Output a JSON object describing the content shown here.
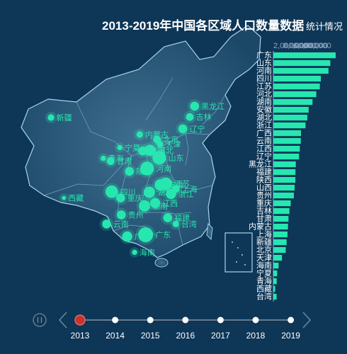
{
  "title": "2013-2019年中国各区域人口数量数据",
  "title_overlap": "统计情况",
  "colors": {
    "background": "#0d3657",
    "accent": "#28e6b0",
    "axis": "#8ea9c0",
    "timeline_active": "#c23531",
    "timeline_line": "#6a7c8c"
  },
  "timeline": {
    "years": [
      "2013",
      "2014",
      "2015",
      "2016",
      "2017",
      "2018",
      "2019"
    ],
    "current_index": 0,
    "play_icon": "pause-icon",
    "prev_icon": "chevron-left-icon",
    "next_icon": "chevron-right-icon"
  },
  "chart_data": [
    {
      "type": "map",
      "region": "China",
      "points": [
        {
          "name": "新疆",
          "lon": 87.6,
          "lat": 43.8,
          "size": 4
        },
        {
          "name": "西藏",
          "lon": 91.1,
          "lat": 29.6,
          "size": 2
        },
        {
          "name": "青海",
          "lon": 101.8,
          "lat": 36.6,
          "size": 3
        },
        {
          "name": "甘肃",
          "lon": 103.8,
          "lat": 36.1,
          "size": 5
        },
        {
          "name": "宁夏",
          "lon": 106.3,
          "lat": 38.5,
          "size": 3
        },
        {
          "name": "内蒙古",
          "lon": 111.7,
          "lat": 40.8,
          "size": 4
        },
        {
          "name": "黑龙江",
          "lon": 126.6,
          "lat": 45.8,
          "size": 6
        },
        {
          "name": "吉林",
          "lon": 125.3,
          "lat": 43.9,
          "size": 5
        },
        {
          "name": "辽宁",
          "lon": 123.4,
          "lat": 41.8,
          "size": 6
        },
        {
          "name": "北京",
          "lon": 116.4,
          "lat": 39.9,
          "size": 5
        },
        {
          "name": "天津",
          "lon": 117.2,
          "lat": 39.1,
          "size": 4
        },
        {
          "name": "河北",
          "lon": 114.5,
          "lat": 38.0,
          "size": 8
        },
        {
          "name": "山西",
          "lon": 112.5,
          "lat": 37.9,
          "size": 6
        },
        {
          "name": "山东",
          "lon": 117.0,
          "lat": 36.7,
          "size": 10
        },
        {
          "name": "河南",
          "lon": 113.7,
          "lat": 34.8,
          "size": 10
        },
        {
          "name": "陕西",
          "lon": 108.9,
          "lat": 34.3,
          "size": 6
        },
        {
          "name": "四川",
          "lon": 104.1,
          "lat": 30.7,
          "size": 9
        },
        {
          "name": "重庆",
          "lon": 106.5,
          "lat": 29.6,
          "size": 6
        },
        {
          "name": "湖北",
          "lon": 114.3,
          "lat": 30.6,
          "size": 8
        },
        {
          "name": "安徽",
          "lon": 117.3,
          "lat": 31.9,
          "size": 8
        },
        {
          "name": "江苏",
          "lon": 118.8,
          "lat": 32.1,
          "size": 9
        },
        {
          "name": "上海",
          "lon": 121.5,
          "lat": 31.2,
          "size": 5
        },
        {
          "name": "浙江",
          "lon": 120.2,
          "lat": 30.3,
          "size": 7
        },
        {
          "name": "江西",
          "lon": 115.9,
          "lat": 28.7,
          "size": 7
        },
        {
          "name": "湖南",
          "lon": 113.0,
          "lat": 28.2,
          "size": 8
        },
        {
          "name": "贵州",
          "lon": 106.7,
          "lat": 26.6,
          "size": 6
        },
        {
          "name": "云南",
          "lon": 102.7,
          "lat": 25.0,
          "size": 6
        },
        {
          "name": "广西",
          "lon": 108.3,
          "lat": 22.8,
          "size": 7
        },
        {
          "name": "广东",
          "lon": 113.3,
          "lat": 23.1,
          "size": 11
        },
        {
          "name": "福建",
          "lon": 119.3,
          "lat": 26.1,
          "size": 6
        },
        {
          "name": "海南",
          "lon": 110.3,
          "lat": 20.0,
          "size": 3
        },
        {
          "name": "台湾",
          "lon": 121.5,
          "lat": 25.0,
          "size": 4
        }
      ]
    },
    {
      "type": "bar",
      "orientation": "horizontal",
      "x_tick_labels": [
        "2,000,000",
        "8,000,000",
        "6,000,000",
        "000,000"
      ],
      "categories": [
        "广东",
        "山东",
        "河南",
        "四川",
        "江苏",
        "河北",
        "湖南",
        "安徽",
        "湖北",
        "浙江",
        "广西",
        "云南",
        "江西",
        "辽宁",
        "黑龙江",
        "福建",
        "陕西",
        "山西",
        "贵州",
        "重庆",
        "吉林",
        "甘肃",
        "内蒙古",
        "上海",
        "新疆",
        "北京",
        "天津",
        "海南",
        "宁夏",
        "青海",
        "西藏",
        "台湾"
      ],
      "values": [
        10644,
        9733,
        9413,
        8107,
        7939,
        7333,
        6691,
        6030,
        5799,
        5498,
        4719,
        4687,
        4522,
        4390,
        3835,
        3774,
        3764,
        3630,
        3502,
        2970,
        2751,
        2582,
        2498,
        2415,
        2264,
        2115,
        1472,
        895,
        654,
        578,
        312,
        550
      ]
    }
  ]
}
